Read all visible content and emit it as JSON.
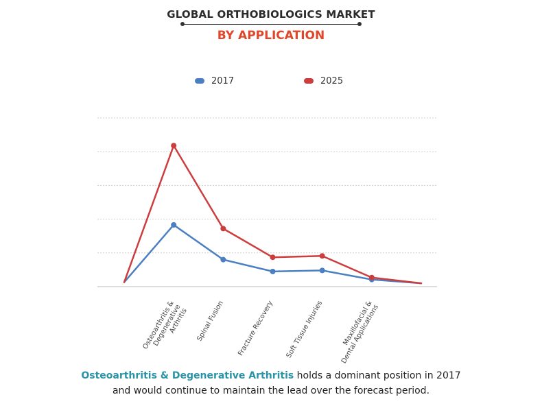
{
  "header": {
    "title": "GLOBAL ORTHOBIOLOGICS MARKET",
    "subtitle": "BY APPLICATION"
  },
  "legend": [
    {
      "label": "2017",
      "color": "#4a7fc1"
    },
    {
      "label": "2025",
      "color": "#cc3e3e"
    }
  ],
  "chart_data": {
    "type": "line",
    "title": "GLOBAL ORTHOBIOLOGICS MARKET",
    "subtitle": "BY APPLICATION",
    "xlabel": "",
    "ylabel": "",
    "ylim": [
      0,
      5
    ],
    "grid": true,
    "legend_position": "top-center",
    "categories": [
      "",
      "Osteoarthritis & Degenerative Arthritis",
      "Spinal Fusion",
      "Fracture Recovery",
      "Soft Tissue Injuries",
      "Maxillofacial & Dental Applications",
      ""
    ],
    "category_lines": [
      [
        ""
      ],
      [
        "Osteoarthritis &",
        "Degenerative",
        "Arthritis"
      ],
      [
        "Spinal Fusion"
      ],
      [
        "Fracture Recovery"
      ],
      [
        "Soft Tissue Injuries"
      ],
      [
        "Maxillofacial &",
        "Dental Applications"
      ],
      [
        ""
      ]
    ],
    "series": [
      {
        "name": "2017",
        "color": "#4a7fc1",
        "values": [
          0.13,
          1.83,
          0.8,
          0.45,
          0.48,
          0.21,
          0.1
        ]
      },
      {
        "name": "2025",
        "color": "#cc3e3e",
        "values": [
          0.13,
          4.18,
          1.72,
          0.87,
          0.91,
          0.27,
          0.1
        ]
      }
    ],
    "marker_indices": [
      1,
      2,
      3,
      4,
      5
    ]
  },
  "caption": {
    "highlight": "Osteoarthritis & Degenerative Arthritis",
    "line1_rest": " holds a dominant position in 2017",
    "line2": "and would continue to maintain the lead over the forecast period."
  }
}
